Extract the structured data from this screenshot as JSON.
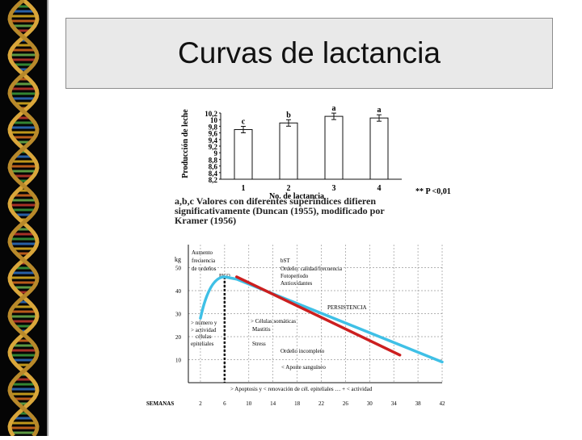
{
  "slide": {
    "title": "Curvas de lactancia"
  },
  "chart_data": [
    {
      "type": "bar",
      "ylabel": "Producción de leche",
      "xlabel": "No. de lactancia",
      "categories": [
        "1",
        "2",
        "3",
        "4"
      ],
      "values": [
        9.7,
        9.9,
        10.1,
        10.05
      ],
      "letters": [
        "c",
        "b",
        "a",
        "a"
      ],
      "ylim": [
        8.2,
        10.2
      ],
      "yticks": [
        "10,2",
        "10",
        "9,8",
        "9,6",
        "9,4",
        "9,2",
        "9",
        "8,8",
        "8,6",
        "8,4",
        "8,2"
      ],
      "significance": "** P <0,01",
      "caption": [
        "a,b,c Valores con diferentes superíndices difieren",
        "significativamente (Duncan (1955), modificado por",
        "Kramer (1956)"
      ]
    },
    {
      "type": "line",
      "ylabel": "kg",
      "xlabel": "SEMANAS",
      "xticks": [
        2,
        6,
        10,
        14,
        18,
        22,
        26,
        30,
        34,
        38,
        42
      ],
      "yticks": [
        10,
        20,
        30,
        40,
        50
      ],
      "ylim": [
        0,
        60
      ],
      "xlim": [
        0,
        42
      ],
      "series": [
        {
          "color": "#3fc0e6",
          "x": [
            2,
            4,
            6,
            8,
            42
          ],
          "y": [
            28,
            42,
            46,
            45,
            9
          ]
        },
        {
          "color": "#cc1f1f",
          "x": [
            8,
            35
          ],
          "y": [
            46,
            12
          ]
        }
      ],
      "peak_week": 6,
      "annotations": {
        "top_left": [
          "Aumento",
          "frecuencia",
          "de ordeños"
        ],
        "top_mid": [
          "bST",
          "Ordeño: calidad/frecuencia",
          "Fotoperíodo",
          "Antioxidantes"
        ],
        "peak": "PICO",
        "persistence": "PERSISTENCIA",
        "left_low": [
          "> número y",
          "> actividad",
          "células",
          "epiteliales"
        ],
        "mid": [
          "> Células somáticas",
          "Mastitis"
        ],
        "stress": "Stress",
        "milking": "Ordeño incompleto",
        "blood": "< Aporte sanguíneo",
        "bottom": "> Apoptosis y < renovación de cél. epiteliales … + < actividad"
      }
    }
  ]
}
